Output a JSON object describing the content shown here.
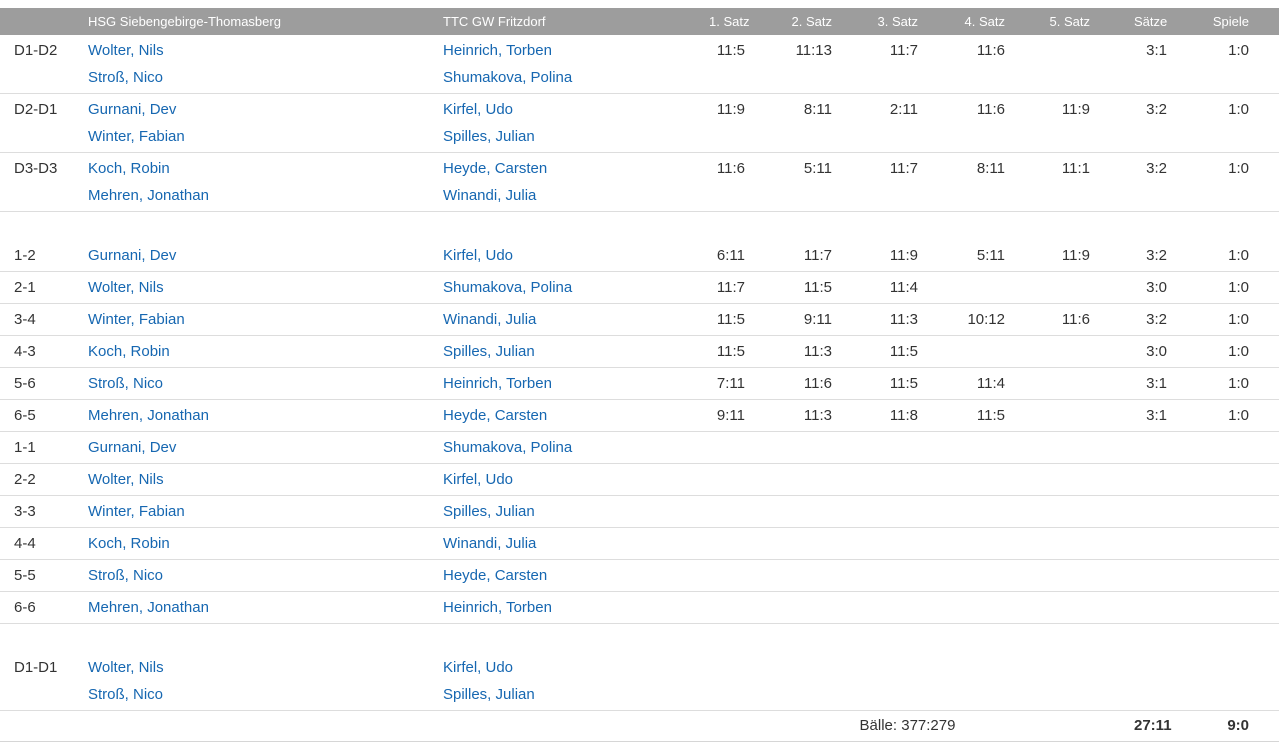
{
  "colors": {
    "header_bg": "#9d9d9d",
    "header_text": "#ffffff",
    "link": "#1667b1",
    "text": "#333333",
    "divider": "#dddddd"
  },
  "table": {
    "headers": [
      "",
      "HSG Siebengebirge-Thomasberg",
      "TTC GW Fritzdorf",
      "1. Satz",
      "2. Satz",
      "3. Satz",
      "4. Satz",
      "5. Satz",
      "Sätze",
      "Spiele"
    ],
    "sections": [
      {
        "name": "doubles",
        "rows": [
          {
            "code": "D1-D2",
            "home": [
              "Wolter, Nils",
              "Stroß, Nico"
            ],
            "away": [
              "Heinrich, Torben",
              "Shumakova, Polina"
            ],
            "sets": [
              "11:5",
              "11:13",
              "11:7",
              "11:6",
              ""
            ],
            "saetze": "3:1",
            "spiele": "1:0"
          },
          {
            "code": "D2-D1",
            "home": [
              "Gurnani, Dev",
              "Winter, Fabian"
            ],
            "away": [
              "Kirfel, Udo",
              "Spilles, Julian"
            ],
            "sets": [
              "11:9",
              "8:11",
              "2:11",
              "11:6",
              "11:9"
            ],
            "saetze": "3:2",
            "spiele": "1:0"
          },
          {
            "code": "D3-D3",
            "home": [
              "Koch, Robin",
              "Mehren, Jonathan"
            ],
            "away": [
              "Heyde, Carsten",
              "Winandi, Julia"
            ],
            "sets": [
              "11:6",
              "5:11",
              "11:7",
              "8:11",
              "11:1"
            ],
            "saetze": "3:2",
            "spiele": "1:0"
          }
        ]
      },
      {
        "name": "singles",
        "rows": [
          {
            "code": "1-2",
            "home": [
              "Gurnani, Dev"
            ],
            "away": [
              "Kirfel, Udo"
            ],
            "sets": [
              "6:11",
              "11:7",
              "11:9",
              "5:11",
              "11:9"
            ],
            "saetze": "3:2",
            "spiele": "1:0"
          },
          {
            "code": "2-1",
            "home": [
              "Wolter, Nils"
            ],
            "away": [
              "Shumakova, Polina"
            ],
            "sets": [
              "11:7",
              "11:5",
              "11:4",
              "",
              ""
            ],
            "saetze": "3:0",
            "spiele": "1:0"
          },
          {
            "code": "3-4",
            "home": [
              "Winter, Fabian"
            ],
            "away": [
              "Winandi, Julia"
            ],
            "sets": [
              "11:5",
              "9:11",
              "11:3",
              "10:12",
              "11:6"
            ],
            "saetze": "3:2",
            "spiele": "1:0"
          },
          {
            "code": "4-3",
            "home": [
              "Koch, Robin"
            ],
            "away": [
              "Spilles, Julian"
            ],
            "sets": [
              "11:5",
              "11:3",
              "11:5",
              "",
              ""
            ],
            "saetze": "3:0",
            "spiele": "1:0"
          },
          {
            "code": "5-6",
            "home": [
              "Stroß, Nico"
            ],
            "away": [
              "Heinrich, Torben"
            ],
            "sets": [
              "7:11",
              "11:6",
              "11:5",
              "11:4",
              ""
            ],
            "saetze": "3:1",
            "spiele": "1:0"
          },
          {
            "code": "6-5",
            "home": [
              "Mehren, Jonathan"
            ],
            "away": [
              "Heyde, Carsten"
            ],
            "sets": [
              "9:11",
              "11:3",
              "11:8",
              "11:5",
              ""
            ],
            "saetze": "3:1",
            "spiele": "1:0"
          },
          {
            "code": "1-1",
            "home": [
              "Gurnani, Dev"
            ],
            "away": [
              "Shumakova, Polina"
            ],
            "sets": [
              "",
              "",
              "",
              "",
              ""
            ],
            "saetze": "",
            "spiele": ""
          },
          {
            "code": "2-2",
            "home": [
              "Wolter, Nils"
            ],
            "away": [
              "Kirfel, Udo"
            ],
            "sets": [
              "",
              "",
              "",
              "",
              ""
            ],
            "saetze": "",
            "spiele": ""
          },
          {
            "code": "3-3",
            "home": [
              "Winter, Fabian"
            ],
            "away": [
              "Spilles, Julian"
            ],
            "sets": [
              "",
              "",
              "",
              "",
              ""
            ],
            "saetze": "",
            "spiele": ""
          },
          {
            "code": "4-4",
            "home": [
              "Koch, Robin"
            ],
            "away": [
              "Winandi, Julia"
            ],
            "sets": [
              "",
              "",
              "",
              "",
              ""
            ],
            "saetze": "",
            "spiele": ""
          },
          {
            "code": "5-5",
            "home": [
              "Stroß, Nico"
            ],
            "away": [
              "Heyde, Carsten"
            ],
            "sets": [
              "",
              "",
              "",
              "",
              ""
            ],
            "saetze": "",
            "spiele": ""
          },
          {
            "code": "6-6",
            "home": [
              "Mehren, Jonathan"
            ],
            "away": [
              "Heinrich, Torben"
            ],
            "sets": [
              "",
              "",
              "",
              "",
              ""
            ],
            "saetze": "",
            "spiele": ""
          }
        ]
      },
      {
        "name": "final-doubles",
        "rows": [
          {
            "code": "D1-D1",
            "home": [
              "Wolter, Nils",
              "Stroß, Nico"
            ],
            "away": [
              "Kirfel, Udo",
              "Spilles, Julian"
            ],
            "sets": [
              "",
              "",
              "",
              "",
              ""
            ],
            "saetze": "",
            "spiele": ""
          }
        ]
      }
    ],
    "footer": {
      "baelle": "Bälle: 377:279",
      "saetze_total": "27:11",
      "spiele_total": "9:0"
    }
  }
}
